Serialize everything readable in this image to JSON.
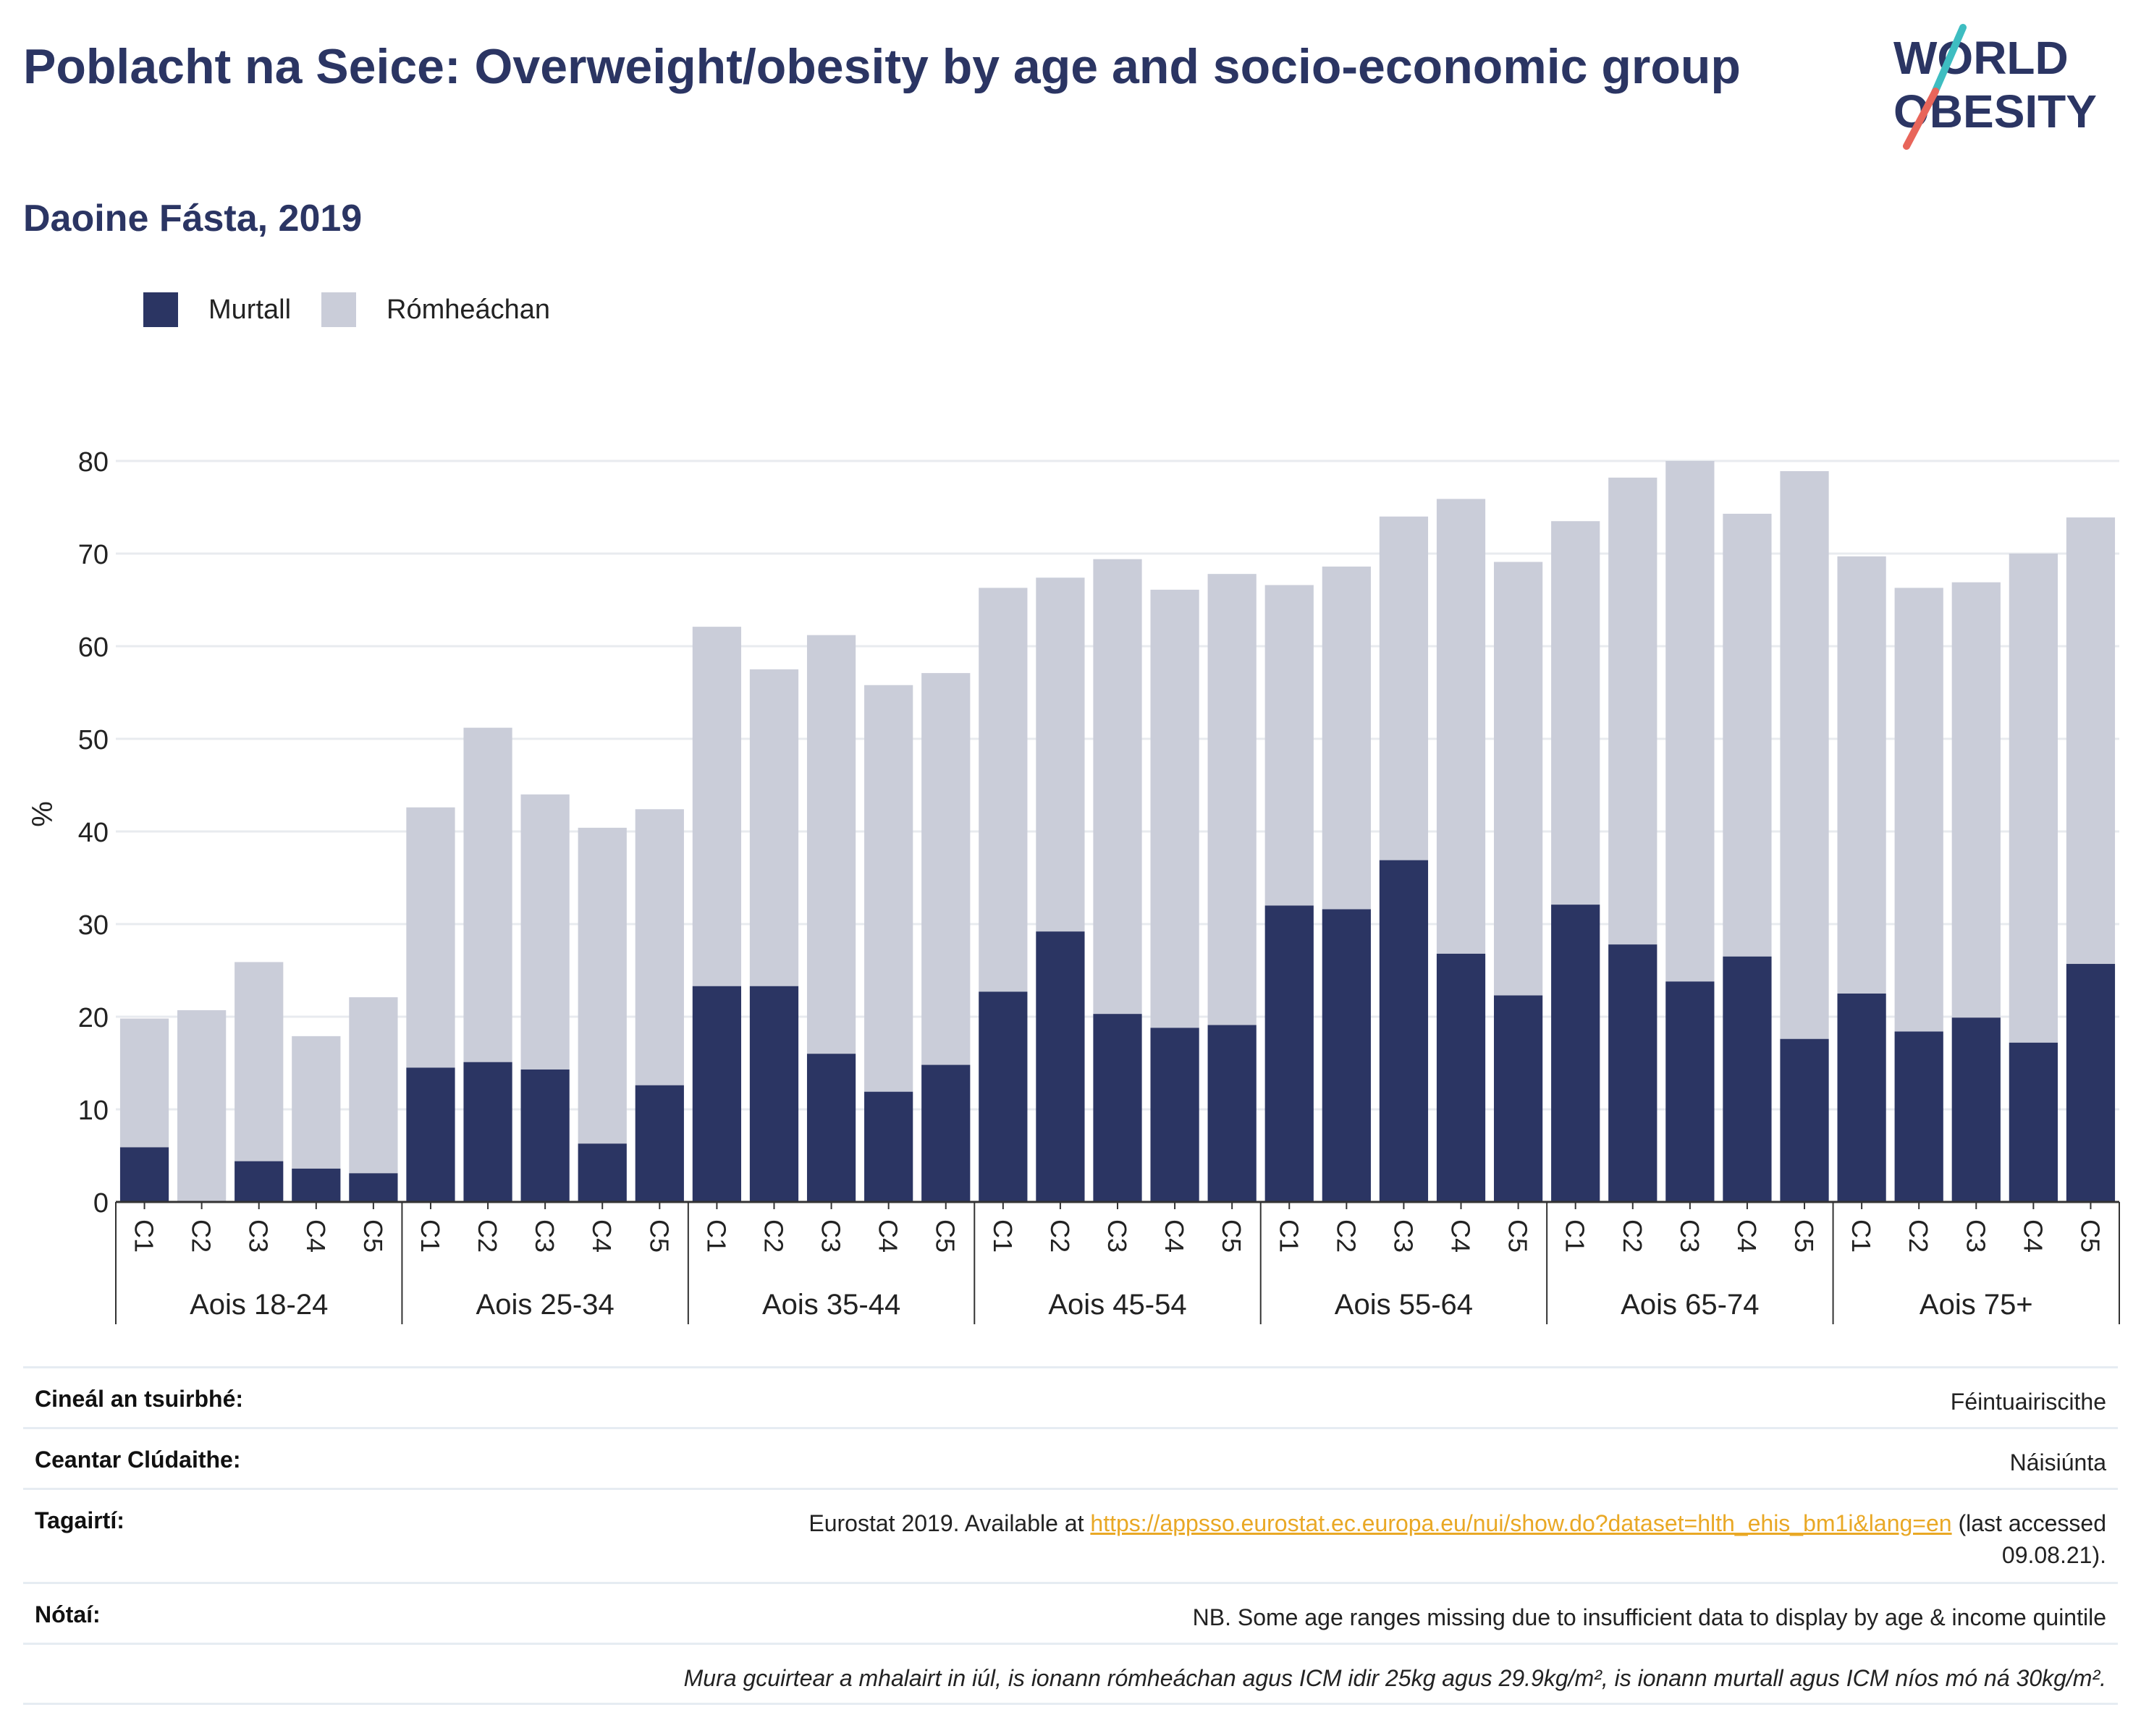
{
  "header": {
    "title": "Poblacht na Seice: Overweight/obesity by age and socio-economic group",
    "subtitle": "Daoine Fásta, 2019"
  },
  "logo": {
    "line1": "WORLD",
    "line2": "OBESITY",
    "accent_teal": "#3ebdc1",
    "accent_red": "#e8655a"
  },
  "colors": {
    "murtall": "#2b3563",
    "romheachan": "#cacdd9",
    "text_dark": "#2b3563",
    "link": "#e9a825"
  },
  "chart_data": {
    "type": "bar",
    "stacked": true,
    "ylabel": "%",
    "ylim": [
      0,
      80
    ],
    "yticks": [
      0,
      10,
      20,
      30,
      40,
      50,
      60,
      70,
      80
    ],
    "grid": true,
    "legend_position": "top-left",
    "groups": [
      "Aois 18-24",
      "Aois 25-34",
      "Aois 35-44",
      "Aois 45-54",
      "Aois 55-64",
      "Aois 65-74",
      "Aois 75+"
    ],
    "categories": [
      "C1",
      "C2",
      "C3",
      "C4",
      "C5"
    ],
    "series": [
      {
        "name": "Murtall",
        "values": [
          [
            5.9,
            0,
            4.4,
            3.6,
            3.1
          ],
          [
            14.5,
            15.1,
            14.3,
            6.3,
            12.6
          ],
          [
            23.3,
            23.3,
            16.0,
            11.9,
            14.8
          ],
          [
            22.7,
            29.2,
            20.3,
            18.8,
            19.1
          ],
          [
            32.0,
            31.6,
            36.9,
            26.8,
            22.3
          ],
          [
            32.1,
            27.8,
            23.8,
            26.5,
            17.6
          ],
          [
            22.5,
            18.4,
            19.9,
            17.2,
            25.7
          ]
        ]
      },
      {
        "name": "Rómheáchan",
        "values": [
          [
            13.9,
            20.7,
            21.5,
            14.3,
            19.0
          ],
          [
            28.1,
            36.1,
            29.7,
            34.1,
            29.8
          ],
          [
            38.8,
            34.2,
            45.2,
            43.9,
            42.3
          ],
          [
            43.6,
            38.2,
            49.1,
            47.3,
            48.7
          ],
          [
            34.6,
            37.0,
            37.1,
            49.1,
            46.8
          ],
          [
            41.4,
            50.4,
            56.2,
            47.8,
            61.3
          ],
          [
            47.2,
            47.9,
            47.0,
            52.8,
            48.2
          ]
        ]
      }
    ]
  },
  "info": {
    "survey_type_label": "Cineál an tsuirbhé:",
    "survey_type_value": "Féintuairiscithe",
    "area_label": "Ceantar Clúdaithe:",
    "area_value": "Náisiúnta",
    "refs_label": "Tagairtí:",
    "refs_prefix": "Eurostat 2019. Available at ",
    "refs_link": "https://appsso.eurostat.ec.europa.eu/nui/show.do?dataset=hlth_ehis_bm1i&lang=en",
    "refs_suffix": " (last accessed",
    "refs_date": "09.08.21).",
    "notes_label": "Nótaí:",
    "notes_value": "NB. Some age ranges missing due to insufficient data to display by age & income quintile",
    "definition_note": "Mura gcuirtear a mhalairt in iúl, is ionann rómheáchan agus ICM idir 25kg agus 29.9kg/m², is ionann murtall agus ICM níos mó ná 30kg/m²."
  }
}
